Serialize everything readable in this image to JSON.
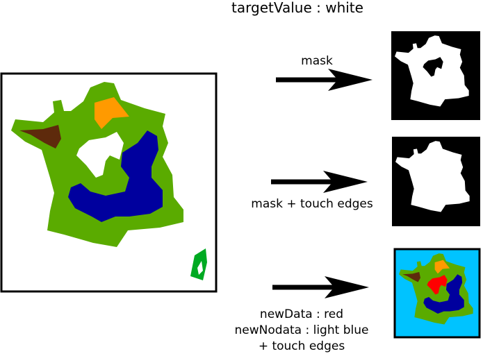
{
  "title": "targetValue : white",
  "arrows": [
    {
      "label_lines": [
        "mask"
      ]
    },
    {
      "label_lines": [
        "mask + touch edges"
      ]
    },
    {
      "label_lines": [
        "newData : red",
        "newNodata : light blue",
        "+ touch edges"
      ]
    }
  ],
  "colors": {
    "land": "#5aab00",
    "orange_region": "#ff9a00",
    "brown_region": "#5e2a0c",
    "blue_region": "#00009e",
    "green_island": "#00aa22",
    "white_target": "#ffffff",
    "mask_background": "#000000",
    "new_data": "#ff0000",
    "new_nodata": "#00c3ff"
  }
}
